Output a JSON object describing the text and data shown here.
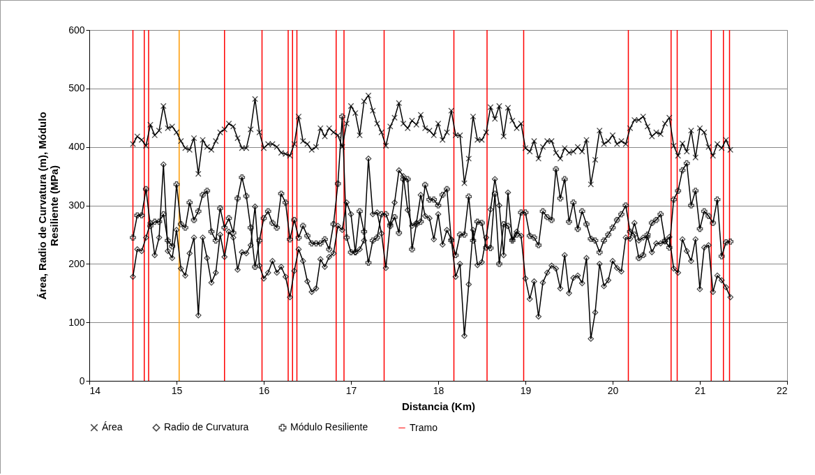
{
  "chart_data": {
    "type": "line",
    "xlabel": "Distancia (Km)",
    "ylabel": "Área, Radio de Curvatura (m), Módulo Resiliente (MPa)",
    "xlim": [
      14,
      22
    ],
    "xticks": [
      14,
      15,
      16,
      17,
      18,
      19,
      20,
      21,
      22
    ],
    "ylim": [
      0,
      600
    ],
    "yticks": [
      0,
      100,
      200,
      300,
      400,
      500,
      600
    ],
    "grid": "y",
    "legend": "bottom",
    "x": [
      14.5,
      14.55,
      14.6,
      14.65,
      14.7,
      14.75,
      14.8,
      14.85,
      14.9,
      14.95,
      15,
      15.05,
      15.1,
      15.15,
      15.2,
      15.25,
      15.3,
      15.35,
      15.4,
      15.45,
      15.5,
      15.55,
      15.6,
      15.65,
      15.7,
      15.75,
      15.8,
      15.85,
      15.9,
      15.95,
      16,
      16.05,
      16.1,
      16.15,
      16.2,
      16.25,
      16.3,
      16.35,
      16.4,
      16.45,
      16.5,
      16.55,
      16.6,
      16.65,
      16.7,
      16.75,
      16.8,
      16.85,
      16.9,
      16.95,
      17,
      17.05,
      17.1,
      17.15,
      17.2,
      17.25,
      17.3,
      17.35,
      17.4,
      17.45,
      17.5,
      17.55,
      17.6,
      17.65,
      17.7,
      17.75,
      17.8,
      17.85,
      17.9,
      17.95,
      18,
      18.05,
      18.1,
      18.15,
      18.2,
      18.25,
      18.3,
      18.35,
      18.4,
      18.45,
      18.5,
      18.55,
      18.6,
      18.65,
      18.7,
      18.75,
      18.8,
      18.85,
      18.9,
      18.95,
      19,
      19.05,
      19.1,
      19.15,
      19.2,
      19.25,
      19.3,
      19.35,
      19.4,
      19.45,
      19.5,
      19.55,
      19.6,
      19.65,
      19.7,
      19.75,
      19.8,
      19.85,
      19.9,
      19.95,
      20,
      20.05,
      20.1,
      20.15,
      20.2,
      20.25,
      20.3,
      20.35,
      20.4,
      20.45,
      20.5,
      20.55,
      20.6,
      20.65,
      20.7,
      20.75,
      20.8,
      20.85,
      20.9,
      20.95,
      21,
      21.05,
      21.1,
      21.15,
      21.2,
      21.25,
      21.3,
      21.35
    ],
    "series": [
      {
        "name": "Área",
        "color": "#000000",
        "marker": "x",
        "values": [
          405,
          418,
          412,
          402,
          438,
          420,
          428,
          470,
          432,
          435,
          425,
          410,
          398,
          395,
          415,
          354,
          412,
          400,
          395,
          410,
          425,
          430,
          440,
          435,
          415,
          398,
          398,
          430,
          482,
          425,
          398,
          405,
          405,
          400,
          390,
          388,
          385,
          405,
          452,
          410,
          405,
          395,
          400,
          432,
          418,
          432,
          425,
          420,
          400,
          440,
          470,
          458,
          420,
          478,
          488,
          462,
          440,
          425,
          402,
          435,
          450,
          475,
          440,
          432,
          445,
          438,
          455,
          432,
          428,
          420,
          440,
          412,
          425,
          462,
          420,
          420,
          338,
          380,
          452,
          412,
          412,
          425,
          468,
          448,
          470,
          418,
          467,
          445,
          432,
          440,
          398,
          392,
          410,
          380,
          400,
          410,
          410,
          390,
          380,
          398,
          390,
          392,
          400,
          392,
          412,
          336,
          378,
          428,
          405,
          410,
          420,
          405,
          410,
          405,
          432,
          446,
          446,
          452,
          435,
          418,
          425,
          422,
          440,
          450,
          402,
          385,
          406,
          392,
          428,
          382,
          432,
          425,
          400,
          385,
          405,
          398,
          412,
          395
        ]
      },
      {
        "name": "Radio de Curvatura",
        "color": "#000000",
        "marker": "diamond",
        "values": [
          178,
          225,
          222,
          245,
          270,
          215,
          245,
          370,
          222,
          210,
          258,
          192,
          180,
          218,
          245,
          112,
          245,
          210,
          168,
          185,
          250,
          212,
          255,
          245,
          190,
          220,
          218,
          232,
          298,
          197,
          175,
          185,
          205,
          185,
          195,
          178,
          143,
          188,
          225,
          205,
          170,
          152,
          158,
          208,
          195,
          212,
          218,
          265,
          258,
          305,
          285,
          220,
          225,
          240,
          380,
          285,
          288,
          252,
          193,
          268,
          305,
          360,
          350,
          292,
          265,
          270,
          318,
          282,
          278,
          242,
          285,
          233,
          258,
          242,
          178,
          200,
          77,
          165,
          258,
          198,
          203,
          245,
          293,
          345,
          300,
          215,
          322,
          242,
          255,
          248,
          175,
          140,
          170,
          110,
          168,
          185,
          197,
          192,
          158,
          215,
          150,
          176,
          180,
          167,
          210,
          72,
          117,
          200,
          162,
          172,
          205,
          193,
          187,
          245,
          243,
          270,
          240,
          245,
          246,
          220,
          235,
          235,
          238,
          246,
          192,
          185,
          242,
          222,
          205,
          242,
          157,
          228,
          232,
          152,
          180,
          172,
          160,
          143
        ]
      },
      {
        "name": "Módulo Resiliente",
        "color": "#000000",
        "marker": "cross",
        "values": [
          245,
          283,
          283,
          328,
          265,
          272,
          272,
          285,
          240,
          230,
          336,
          268,
          262,
          305,
          275,
          290,
          318,
          325,
          255,
          240,
          295,
          262,
          278,
          253,
          312,
          348,
          316,
          262,
          195,
          240,
          278,
          290,
          270,
          262,
          320,
          305,
          242,
          275,
          245,
          265,
          248,
          235,
          235,
          235,
          242,
          225,
          268,
          337,
          452,
          245,
          220,
          220,
          290,
          255,
          202,
          240,
          245,
          285,
          285,
          265,
          280,
          253,
          345,
          345,
          225,
          268,
          272,
          335,
          310,
          310,
          300,
          318,
          328,
          240,
          215,
          250,
          250,
          315,
          240,
          272,
          270,
          228,
          227,
          320,
          200,
          268,
          265,
          240,
          250,
          288,
          288,
          248,
          245,
          232,
          290,
          280,
          275,
          362,
          312,
          345,
          272,
          305,
          260,
          290,
          268,
          243,
          240,
          220,
          240,
          250,
          262,
          275,
          285,
          300,
          255,
          250,
          210,
          215,
          250,
          270,
          275,
          285,
          240,
          228,
          310,
          325,
          360,
          372,
          300,
          325,
          260,
          290,
          282,
          270,
          310,
          213,
          237,
          238
        ]
      }
    ],
    "ref_lines": [
      {
        "axis": "x",
        "value": 14.5,
        "label": "Tramo",
        "color": "#ff0000"
      },
      {
        "axis": "x",
        "value": 14.63,
        "color": "#ff0000"
      },
      {
        "axis": "x",
        "value": 14.68,
        "color": "#ff0000"
      },
      {
        "axis": "x",
        "value": 15.03,
        "color": "#ff9900"
      },
      {
        "axis": "x",
        "value": 15.55,
        "color": "#ff0000"
      },
      {
        "axis": "x",
        "value": 15.98,
        "color": "#ff0000"
      },
      {
        "axis": "x",
        "value": 16.28,
        "color": "#ff0000"
      },
      {
        "axis": "x",
        "value": 16.33,
        "color": "#ff0000"
      },
      {
        "axis": "x",
        "value": 16.38,
        "color": "#ff0000"
      },
      {
        "axis": "x",
        "value": 16.83,
        "color": "#ff0000"
      },
      {
        "axis": "x",
        "value": 16.92,
        "color": "#ff0000"
      },
      {
        "axis": "x",
        "value": 17.38,
        "color": "#ff0000"
      },
      {
        "axis": "x",
        "value": 18.18,
        "color": "#ff0000"
      },
      {
        "axis": "x",
        "value": 18.56,
        "color": "#ff0000"
      },
      {
        "axis": "x",
        "value": 18.98,
        "color": "#ff0000"
      },
      {
        "axis": "x",
        "value": 20.18,
        "color": "#ff0000"
      },
      {
        "axis": "x",
        "value": 20.67,
        "color": "#ff0000"
      },
      {
        "axis": "x",
        "value": 20.74,
        "color": "#ff0000"
      },
      {
        "axis": "x",
        "value": 21.13,
        "color": "#ff0000"
      },
      {
        "axis": "x",
        "value": 21.27,
        "color": "#ff0000"
      },
      {
        "axis": "x",
        "value": 21.34,
        "color": "#ff0000"
      }
    ]
  }
}
